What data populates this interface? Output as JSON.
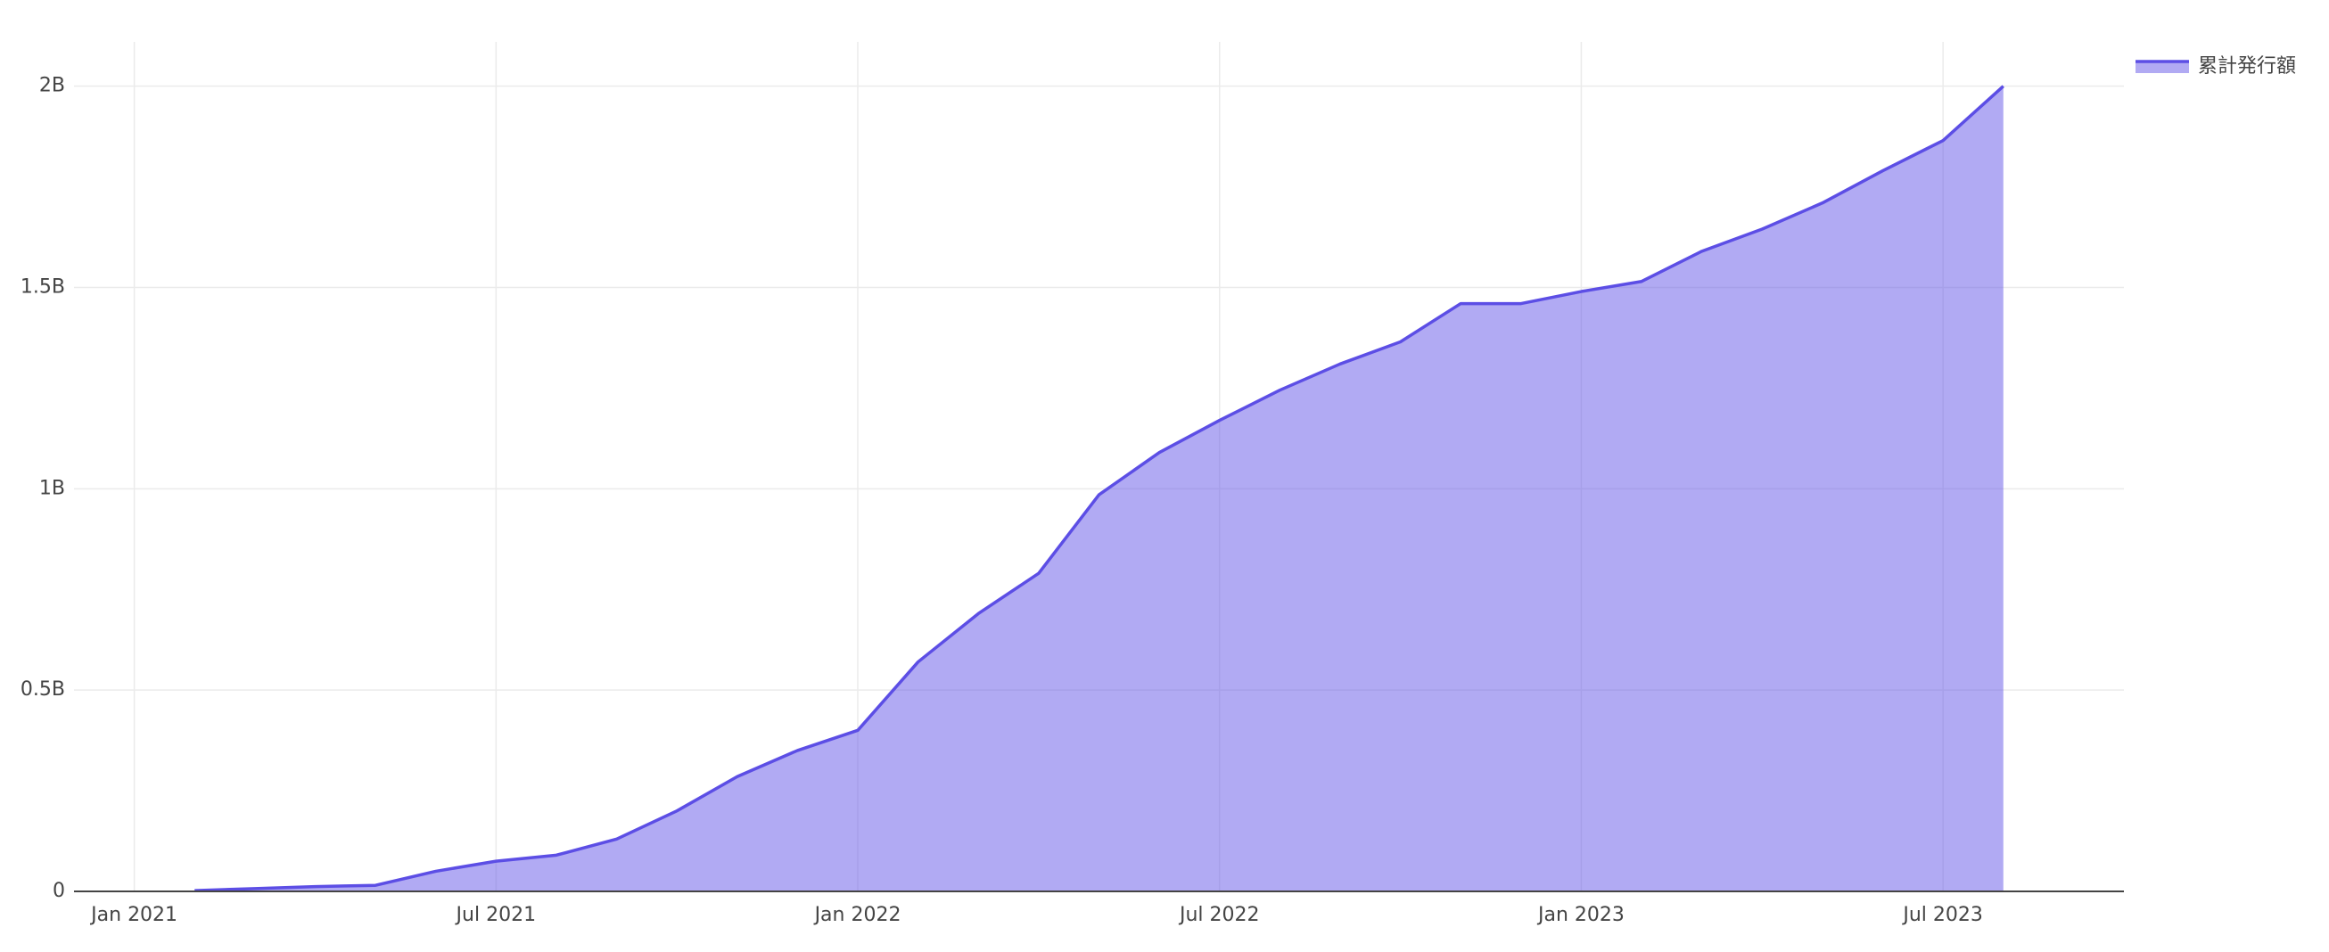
{
  "chart_data": {
    "type": "area",
    "x": [
      "2021-02",
      "2021-03",
      "2021-04",
      "2021-05",
      "2021-06",
      "2021-07",
      "2021-08",
      "2021-09",
      "2021-10",
      "2021-11",
      "2021-12",
      "2022-01",
      "2022-02",
      "2022-03",
      "2022-04",
      "2022-05",
      "2022-06",
      "2022-07",
      "2022-08",
      "2022-09",
      "2022-10",
      "2022-11",
      "2022-12",
      "2023-01",
      "2023-02",
      "2023-03",
      "2023-04",
      "2023-05",
      "2023-06",
      "2023-07",
      "2023-08"
    ],
    "series": [
      {
        "name": "累計発行額",
        "color": "#5c4ee5",
        "values": [
          2000000,
          7000000,
          12000000,
          15000000,
          50000000,
          75000000,
          90000000,
          130000000,
          200000000,
          285000000,
          350000000,
          400000000,
          570000000,
          690000000,
          790000000,
          985000000,
          1090000000,
          1170000000,
          1245000000,
          1310000000,
          1365000000,
          1460000000,
          1460000000,
          1490000000,
          1515000000,
          1590000000,
          1645000000,
          1710000000,
          1790000000,
          1865000000,
          2000000000
        ]
      }
    ],
    "xlim": [
      "2020-12",
      "2023-10"
    ],
    "xticks": [
      {
        "value": "2021-01",
        "label": "Jan 2021"
      },
      {
        "value": "2021-07",
        "label": "Jul 2021"
      },
      {
        "value": "2022-01",
        "label": "Jan 2022"
      },
      {
        "value": "2022-07",
        "label": "Jul 2022"
      },
      {
        "value": "2023-01",
        "label": "Jan 2023"
      },
      {
        "value": "2023-07",
        "label": "Jul 2023"
      }
    ],
    "ylim": [
      0,
      2110000000
    ],
    "yticks": [
      0,
      {
        "value": 500000000,
        "label": "0.5B"
      },
      {
        "value": 1000000000,
        "label": "1B"
      },
      {
        "value": 1500000000,
        "label": "1.5B"
      },
      {
        "value": 2000000000,
        "label": "2B"
      }
    ],
    "grid": true
  }
}
